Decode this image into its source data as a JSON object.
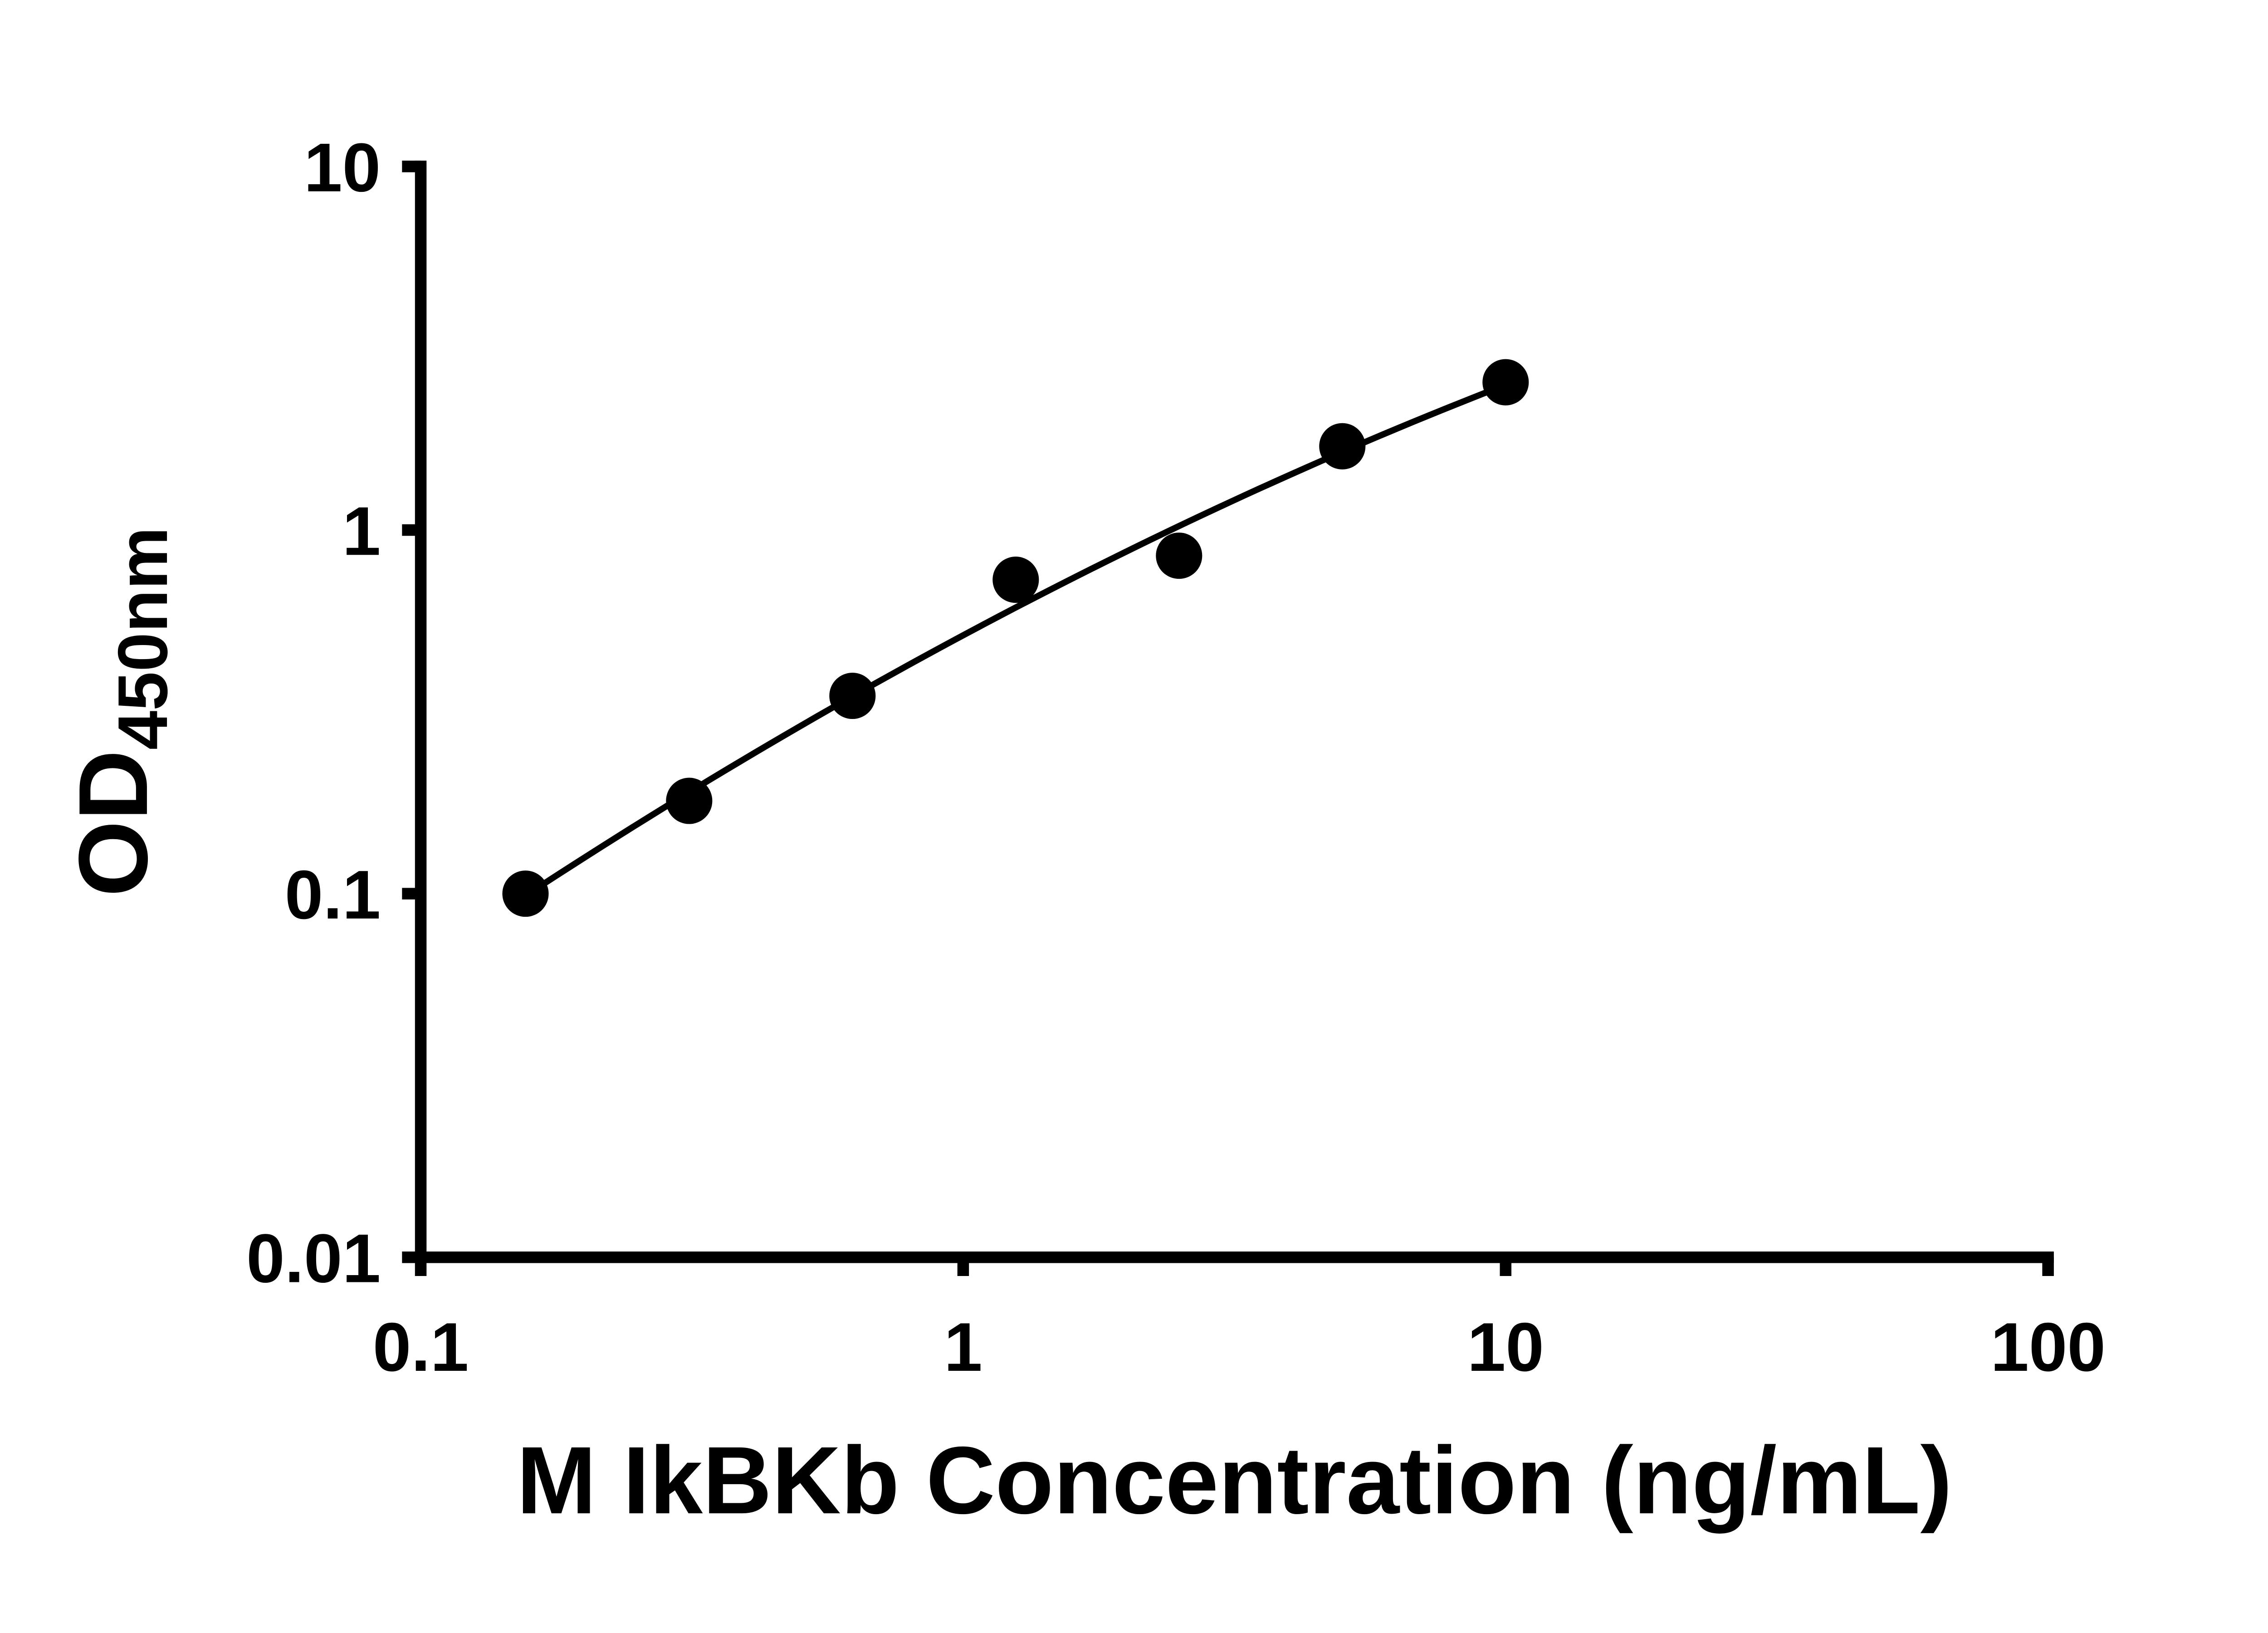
{
  "figure": {
    "background": "#ffffff",
    "axis_color": "#000000",
    "marker_color": "#000000",
    "line_color": "#000000"
  },
  "chart_data": {
    "type": "scatter",
    "title": "",
    "xlabel": "M IkBKb Concentration (ng/mL)",
    "ylabel": "OD",
    "ylabel_subscript": "450nm",
    "x_scale": "log",
    "y_scale": "log",
    "xlim": [
      0.1,
      100
    ],
    "ylim": [
      0.01,
      10
    ],
    "grid": false,
    "legend": null,
    "x_ticks": [
      {
        "value": 0.1,
        "label": "0.1"
      },
      {
        "value": 1,
        "label": "1"
      },
      {
        "value": 10,
        "label": "10"
      },
      {
        "value": 100,
        "label": "100"
      }
    ],
    "y_ticks": [
      {
        "value": 0.01,
        "label": "0.01"
      },
      {
        "value": 0.1,
        "label": "0.1"
      },
      {
        "value": 1,
        "label": "1"
      },
      {
        "value": 10,
        "label": "10"
      }
    ],
    "points": [
      {
        "x": 0.156,
        "y": 0.1
      },
      {
        "x": 0.3125,
        "y": 0.18
      },
      {
        "x": 0.625,
        "y": 0.35
      },
      {
        "x": 1.25,
        "y": 0.73
      },
      {
        "x": 2.5,
        "y": 0.85
      },
      {
        "x": 5,
        "y": 1.7
      },
      {
        "x": 10,
        "y": 2.55
      }
    ],
    "trendline": {
      "present": true,
      "fit": "smooth curve through standards (log-log)",
      "x_start": 0.156,
      "x_end": 10
    }
  }
}
